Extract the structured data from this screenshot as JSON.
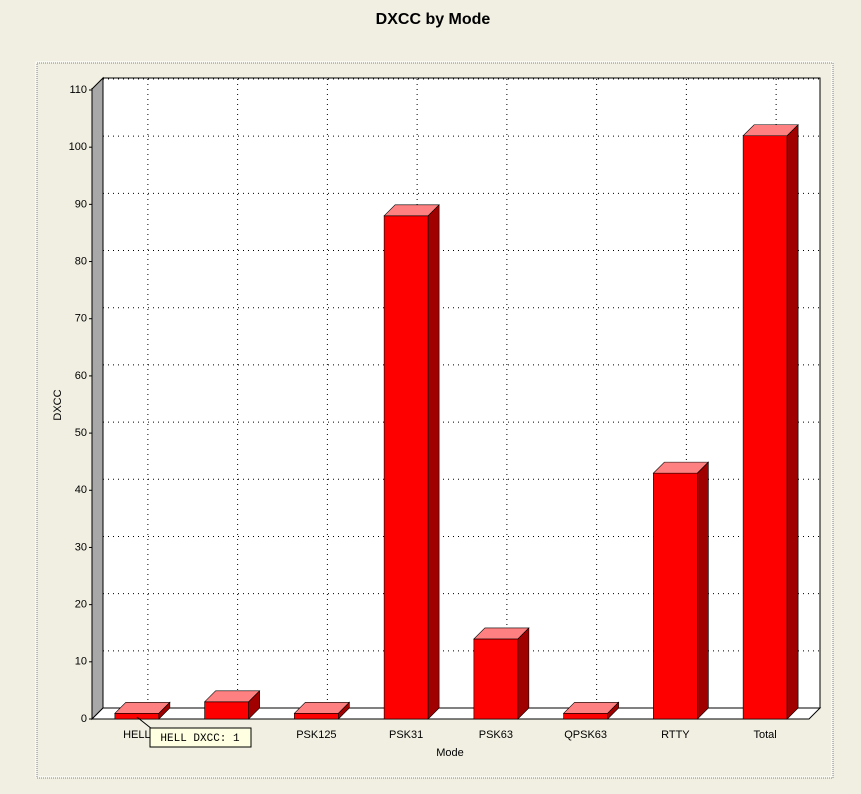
{
  "chart_data": {
    "type": "bar3d",
    "title": "DXCC by Mode",
    "x_label": "Mode",
    "y_label": "DXCC",
    "categories": [
      "HELL",
      null,
      "PSK125",
      "PSK31",
      "PSK63",
      "QPSK63",
      "RTTY",
      "Total"
    ],
    "values": [
      1,
      3,
      1,
      88,
      14,
      1,
      43,
      102
    ],
    "color": "#ff0000",
    "ylim": [
      0,
      110
    ],
    "yticks": [
      0,
      10,
      20,
      30,
      40,
      50,
      60,
      70,
      80,
      90,
      100,
      110
    ],
    "grid": true,
    "tooltip": "HELL DXCC: 1"
  }
}
